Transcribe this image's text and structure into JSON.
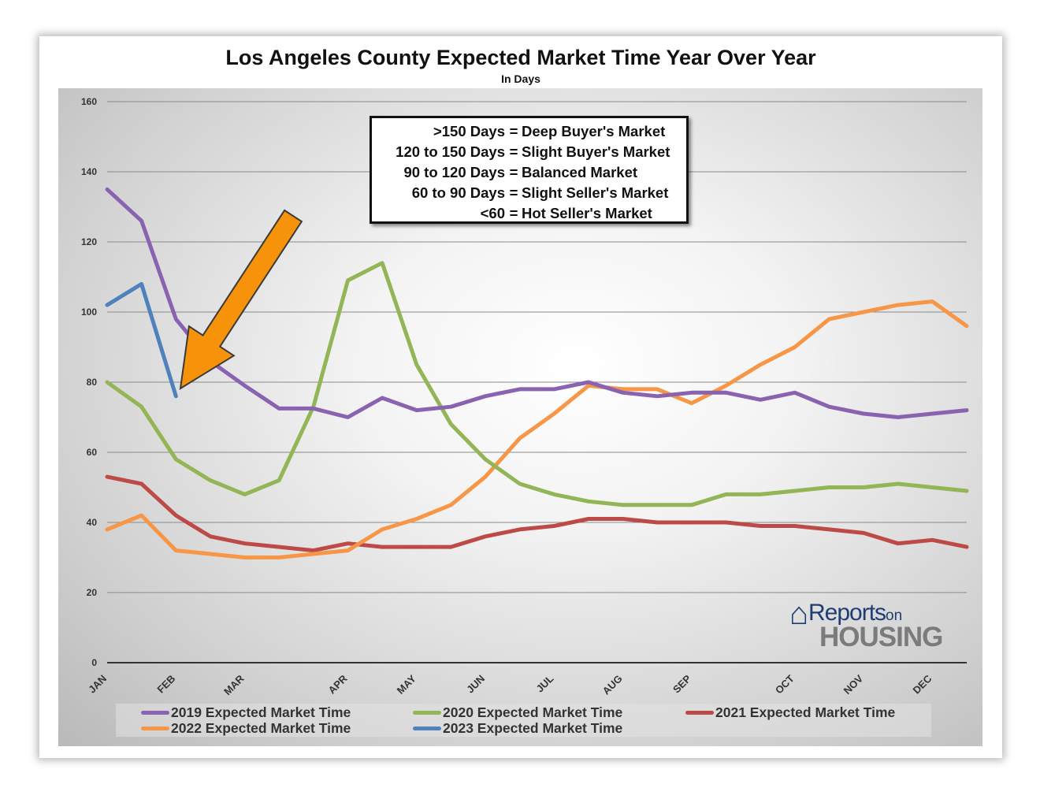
{
  "chart_data": {
    "type": "line",
    "title": "Los Angeles County Expected Market Time Year Over Year",
    "subtitle": "In Days",
    "xlabel": "",
    "ylabel": "",
    "ylim": [
      0,
      160
    ],
    "yticks": [
      0,
      20,
      40,
      60,
      80,
      100,
      120,
      140,
      160
    ],
    "x_points": 26,
    "month_labels": [
      {
        "label": "JAN",
        "index": 0
      },
      {
        "label": "FEB",
        "index": 2
      },
      {
        "label": "MAR",
        "index": 4
      },
      {
        "label": "APR",
        "index": 7
      },
      {
        "label": "MAY",
        "index": 9
      },
      {
        "label": "JUN",
        "index": 11
      },
      {
        "label": "JUL",
        "index": 13
      },
      {
        "label": "AUG",
        "index": 15
      },
      {
        "label": "SEP",
        "index": 17
      },
      {
        "label": "OCT",
        "index": 20
      },
      {
        "label": "NOV",
        "index": 22
      },
      {
        "label": "DEC",
        "index": 24
      }
    ],
    "series": [
      {
        "name": "2019 Expected Market Time",
        "color": "#8a63b0",
        "values": [
          135,
          126,
          98,
          86,
          79,
          72.5,
          72.5,
          70,
          75.5,
          72,
          73,
          76,
          78,
          78,
          80,
          77,
          76,
          77,
          77,
          75,
          77,
          73,
          71,
          70,
          71,
          72
        ]
      },
      {
        "name": "2020 Expected Market Time",
        "color": "#92b556",
        "values": [
          80,
          73,
          58,
          52,
          48,
          52,
          73,
          109,
          114,
          85,
          68,
          58,
          51,
          48,
          46,
          45,
          45,
          45,
          48,
          48,
          49,
          50,
          50,
          51,
          50,
          49
        ]
      },
      {
        "name": "2021 Expected Market Time",
        "color": "#be4a47",
        "values": [
          53,
          51,
          42,
          36,
          34,
          33,
          32,
          34,
          33,
          33,
          33,
          36,
          38,
          39,
          41,
          41,
          40,
          40,
          40,
          39,
          39,
          38,
          37,
          34,
          35,
          33
        ]
      },
      {
        "name": "2022 Expected Market Time",
        "color": "#f79646",
        "values": [
          38,
          42,
          32,
          31,
          30,
          30,
          31,
          32,
          38,
          41,
          45,
          53,
          64,
          71,
          79,
          78,
          78,
          74,
          79,
          85,
          90,
          98,
          100,
          102,
          103,
          96
        ]
      },
      {
        "name": "2023 Expected Market Time",
        "color": "#4f81bd",
        "values": [
          102,
          108,
          76
        ]
      }
    ]
  },
  "legend": {
    "items": [
      {
        "label": "2019 Expected Market Time",
        "color": "#8a63b0"
      },
      {
        "label": "2020 Expected Market Time",
        "color": "#92b556"
      },
      {
        "label": "2021 Expected Market Time",
        "color": "#be4a47"
      },
      {
        "label": "2022 Expected Market Time",
        "color": "#f79646"
      },
      {
        "label": "2023 Expected Market Time",
        "color": "#4f81bd"
      }
    ]
  },
  "key": {
    "rows": [
      {
        "range": ">150 Days",
        "eq": "=",
        "desc": "Deep Buyer's Market"
      },
      {
        "range": "120 to 150 Days",
        "eq": "=",
        "desc": "Slight Buyer's Market"
      },
      {
        "range": "90 to 120 Days",
        "eq": "=",
        "desc": "Balanced Market"
      },
      {
        "range": "60 to 90 Days",
        "eq": "=",
        "desc": "Slight Seller's Market"
      },
      {
        "range": "<60",
        "eq": "=",
        "desc": "Hot Seller's Market"
      }
    ]
  },
  "logo": {
    "reports": "Reports",
    "on": "on",
    "housing": "HOUSING"
  },
  "annotation": {
    "arrow_color": "#f7930a",
    "points_to_value": 76
  }
}
